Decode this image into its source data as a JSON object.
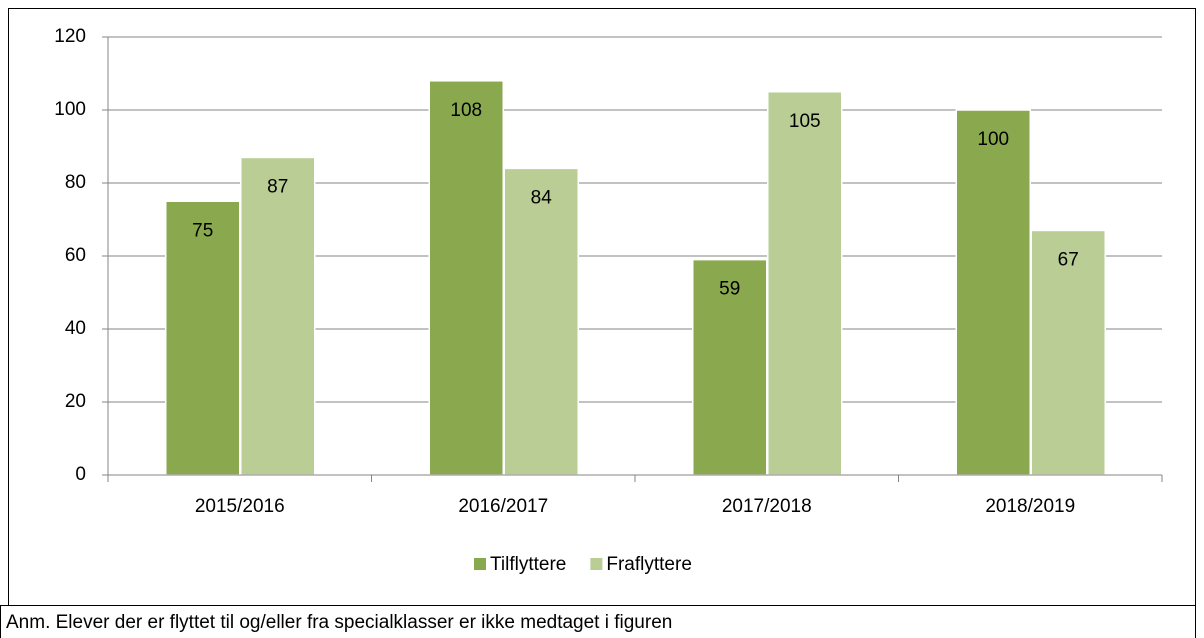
{
  "chart_data": {
    "type": "bar",
    "categories": [
      "2015/2016",
      "2016/2017",
      "2017/2018",
      "2018/2019"
    ],
    "series": [
      {
        "name": "Tilflyttere",
        "color": "#8aa84e",
        "values": [
          75,
          108,
          59,
          100
        ]
      },
      {
        "name": "Fraflyttere",
        "color": "#b9cd95",
        "values": [
          87,
          84,
          105,
          67
        ]
      }
    ],
    "ylim": [
      0,
      120
    ],
    "yticks": [
      0,
      20,
      40,
      60,
      80,
      100,
      120
    ],
    "grid": true,
    "legend": "bottom",
    "note": "Anm. Elever der er flyttet til og/eller fra specialklasser er ikke medtaget i figuren"
  }
}
